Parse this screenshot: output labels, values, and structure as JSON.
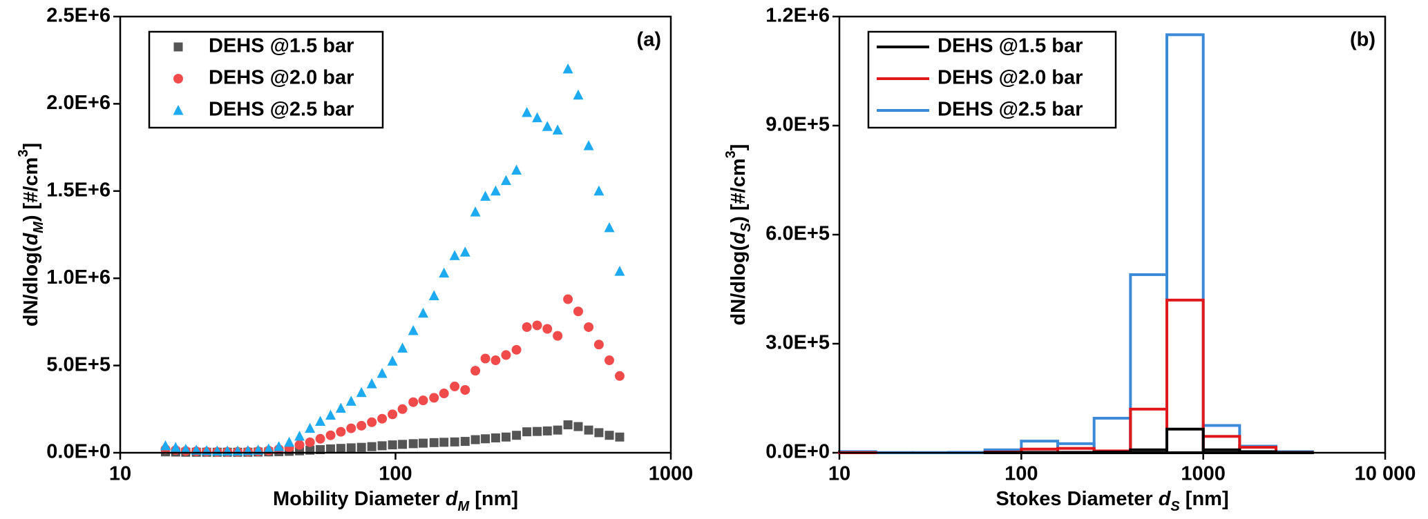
{
  "chart_data": [
    {
      "type": "scatter",
      "annotation": "(a)",
      "xlabel": [
        "Mobility Diameter ",
        "d",
        "M",
        " [nm]"
      ],
      "ylabel": [
        "dN/dlog(",
        "d",
        "M",
        ") [#/cm",
        "3",
        "]"
      ],
      "xscale": "log",
      "xlim": [
        10,
        1000
      ],
      "xticks": [
        10,
        100,
        1000
      ],
      "ylim": [
        0,
        2500000
      ],
      "yticks": [
        {
          "value": 0,
          "label": "0.0E+0"
        },
        {
          "value": 500000,
          "label": "5.0E+5"
        },
        {
          "value": 1000000,
          "label": "1.0E+6"
        },
        {
          "value": 1500000,
          "label": "1.5E+6"
        },
        {
          "value": 2000000,
          "label": "2.0E+6"
        },
        {
          "value": 2500000,
          "label": "2.5E+6"
        }
      ],
      "legend": "upper left",
      "x": [
        14.6,
        15.9,
        17.3,
        18.9,
        20.6,
        22.5,
        24.5,
        26.7,
        29.1,
        31.7,
        34.6,
        37.7,
        41.1,
        44.8,
        48.9,
        53.3,
        58.1,
        63.3,
        69.0,
        75.2,
        82.0,
        89.4,
        97.5,
        106,
        116,
        126,
        138,
        150,
        164,
        179,
        195,
        212,
        231,
        252,
        275,
        300,
        327,
        356,
        388,
        423,
        461,
        503,
        548,
        598,
        652
      ],
      "series": [
        {
          "name": "DEHS @1.5 bar",
          "color": "#555555",
          "marker": "square",
          "values": [
            5000,
            4000,
            3000,
            3000,
            3000,
            3000,
            3000,
            3000,
            3000,
            4000,
            5000,
            6000,
            8000,
            11000,
            15000,
            18000,
            22000,
            25000,
            28000,
            31000,
            35000,
            40000,
            45000,
            48000,
            52000,
            55000,
            58000,
            60000,
            62000,
            65000,
            75000,
            80000,
            85000,
            90000,
            100000,
            120000,
            122000,
            125000,
            130000,
            160000,
            150000,
            130000,
            115000,
            100000,
            90000
          ]
        },
        {
          "name": "DEHS @2.0 bar",
          "color": "#f04a4a",
          "marker": "circle",
          "values": [
            20000,
            15000,
            10000,
            8000,
            6000,
            5000,
            5000,
            5000,
            6000,
            8000,
            12000,
            20000,
            30000,
            45000,
            60000,
            80000,
            100000,
            120000,
            140000,
            155000,
            175000,
            195000,
            220000,
            250000,
            290000,
            300000,
            315000,
            340000,
            380000,
            360000,
            470000,
            540000,
            530000,
            560000,
            590000,
            720000,
            730000,
            710000,
            670000,
            880000,
            810000,
            720000,
            620000,
            530000,
            440000
          ]
        },
        {
          "name": "DEHS @2.5 bar",
          "color": "#1eaaf0",
          "marker": "triangle",
          "values": [
            40000,
            30000,
            20000,
            15000,
            12000,
            10000,
            10000,
            10000,
            12000,
            15000,
            22000,
            35000,
            60000,
            95000,
            140000,
            180000,
            215000,
            255000,
            295000,
            345000,
            395000,
            455000,
            525000,
            600000,
            700000,
            800000,
            900000,
            1030000,
            1130000,
            1150000,
            1380000,
            1470000,
            1500000,
            1560000,
            1620000,
            1950000,
            1920000,
            1870000,
            1850000,
            2200000,
            2050000,
            1760000,
            1500000,
            1290000,
            1040000
          ]
        }
      ]
    },
    {
      "type": "histogram",
      "annotation": "(b)",
      "xlabel": [
        "Stokes Diameter ",
        "d",
        "S",
        " [nm]"
      ],
      "ylabel": [
        "dN/dlog(",
        "d",
        "S",
        ") [#/cm",
        "3",
        "]"
      ],
      "xscale": "log",
      "xlim": [
        10,
        10000
      ],
      "xticks": [
        10,
        100,
        1000,
        {
          "value": 10000,
          "label": "10 000"
        }
      ],
      "ylim": [
        0,
        1200000
      ],
      "yticks": [
        {
          "value": 0,
          "label": "0.0E+0"
        },
        {
          "value": 300000,
          "label": "3.0E+5"
        },
        {
          "value": 600000,
          "label": "6.0E+5"
        },
        {
          "value": 900000,
          "label": "9.0E+5"
        },
        {
          "value": 1200000,
          "label": "1.2E+6"
        }
      ],
      "legend": "upper left",
      "bins": [
        10,
        15.85,
        25.12,
        39.81,
        63.1,
        100,
        158.5,
        251.2,
        398.1,
        631,
        1000,
        1585,
        2512,
        3981
      ],
      "series": [
        {
          "name": "DEHS @1.5 bar",
          "color": "#000000",
          "values": [
            0,
            0,
            0,
            0,
            500,
            1000,
            1000,
            2000,
            8000,
            65000,
            8000,
            3000,
            500
          ]
        },
        {
          "name": "DEHS @2.0 bar",
          "color": "#e0181b",
          "values": [
            500,
            0,
            0,
            0,
            2000,
            10000,
            12000,
            5000,
            120000,
            420000,
            45000,
            15000,
            1000
          ]
        },
        {
          "name": "DEHS @2.5 bar",
          "color": "#3b8ad8",
          "values": [
            3000,
            500,
            500,
            1000,
            8000,
            32000,
            25000,
            95000,
            490000,
            1150000,
            75000,
            18000,
            3000
          ]
        }
      ]
    }
  ]
}
